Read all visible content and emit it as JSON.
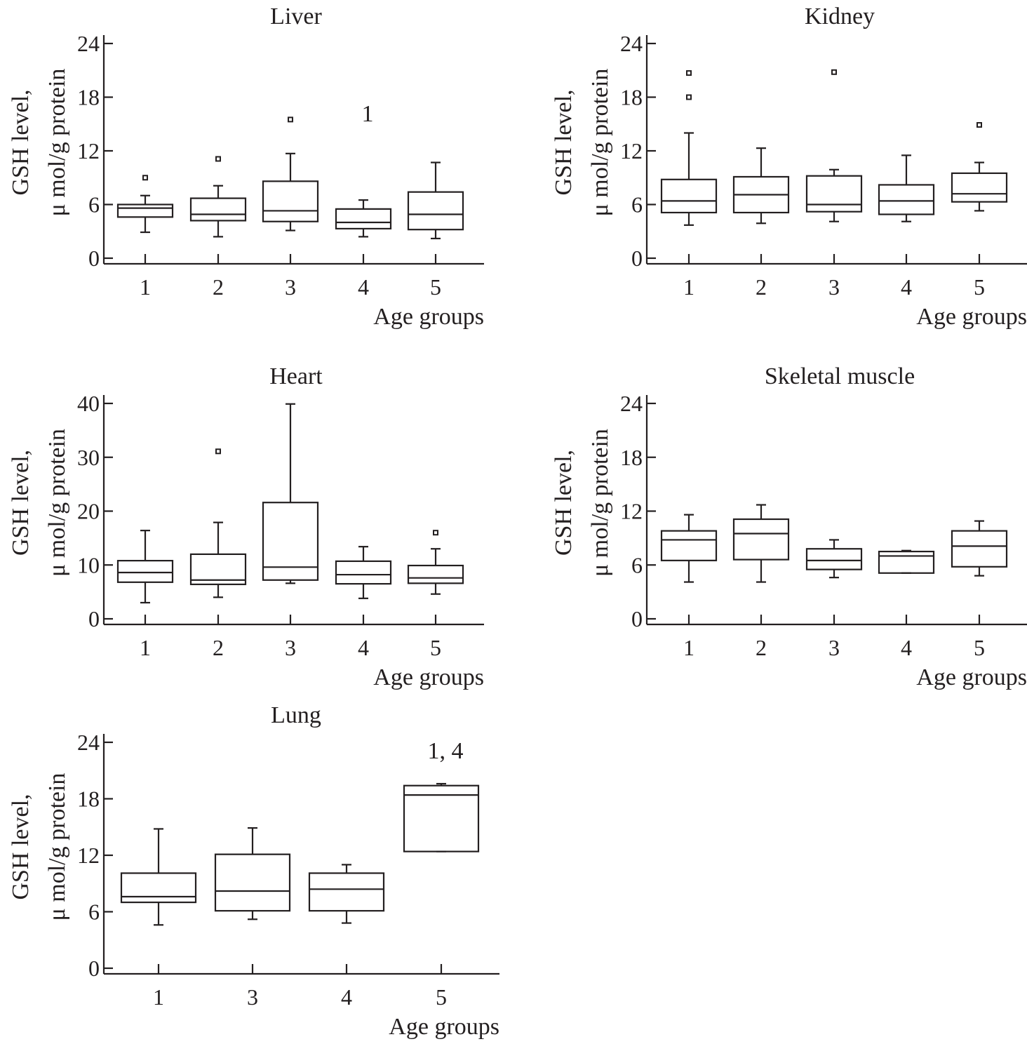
{
  "chart_data": [
    {
      "type": "box",
      "title": "Liver",
      "ylabel": [
        "GSH level,",
        "μ mol/g protein"
      ],
      "xlabel": "Age groups",
      "ylim": [
        0,
        24
      ],
      "yticks": [
        "0",
        "6",
        "12",
        "18",
        "24"
      ],
      "categories": [
        "1",
        "2",
        "3",
        "4",
        "5"
      ],
      "boxes": [
        {
          "min": 2.9,
          "q1": 4.6,
          "median": 5.6,
          "q3": 6.0,
          "max": 7.0,
          "outliers": [
            9.0
          ]
        },
        {
          "min": 2.4,
          "q1": 4.2,
          "median": 4.9,
          "q3": 6.7,
          "max": 8.1,
          "outliers": [
            11.1
          ]
        },
        {
          "min": 3.1,
          "q1": 4.1,
          "median": 5.3,
          "q3": 8.6,
          "max": 11.7,
          "outliers": [
            15.5
          ]
        },
        {
          "min": 2.4,
          "q1": 3.3,
          "median": 4.0,
          "q3": 5.5,
          "max": 6.5,
          "outliers": [],
          "annotation": "1"
        },
        {
          "min": 2.2,
          "q1": 3.2,
          "median": 4.9,
          "q3": 7.4,
          "max": 10.7,
          "outliers": []
        }
      ]
    },
    {
      "type": "box",
      "title": "Kidney",
      "ylabel": [
        "GSH level,",
        "μ mol/g protein"
      ],
      "xlabel": "Age groups",
      "ylim": [
        0,
        24
      ],
      "yticks": [
        "0",
        "6",
        "12",
        "18",
        "24"
      ],
      "categories": [
        "1",
        "2",
        "3",
        "4",
        "5"
      ],
      "boxes": [
        {
          "min": 3.7,
          "q1": 5.1,
          "median": 6.4,
          "q3": 8.8,
          "max": 14.0,
          "outliers": [
            18.0,
            20.7
          ]
        },
        {
          "min": 3.9,
          "q1": 5.1,
          "median": 7.1,
          "q3": 9.1,
          "max": 12.3,
          "outliers": []
        },
        {
          "min": 4.1,
          "q1": 5.2,
          "median": 6.0,
          "q3": 9.2,
          "max": 9.9,
          "outliers": [
            20.8
          ]
        },
        {
          "min": 4.1,
          "q1": 4.9,
          "median": 6.4,
          "q3": 8.2,
          "max": 11.5,
          "outliers": []
        },
        {
          "min": 5.3,
          "q1": 6.3,
          "median": 7.2,
          "q3": 9.5,
          "max": 10.7,
          "outliers": [
            14.9
          ]
        }
      ]
    },
    {
      "type": "box",
      "title": "Heart",
      "ylabel": [
        "GSH level,",
        "μ mol/g protein"
      ],
      "xlabel": "Age groups",
      "ylim": [
        0,
        40
      ],
      "yticks": [
        "0",
        "10",
        "20",
        "30",
        "40"
      ],
      "categories": [
        "1",
        "2",
        "3",
        "4",
        "5"
      ],
      "boxes": [
        {
          "min": 3.0,
          "q1": 6.8,
          "median": 8.6,
          "q3": 10.8,
          "max": 16.4,
          "outliers": []
        },
        {
          "min": 4.0,
          "q1": 6.4,
          "median": 7.2,
          "q3": 12.0,
          "max": 17.9,
          "outliers": [
            31.1
          ]
        },
        {
          "min": 6.6,
          "q1": 7.2,
          "median": 9.6,
          "q3": 21.6,
          "max": 39.9,
          "outliers": []
        },
        {
          "min": 3.8,
          "q1": 6.5,
          "median": 8.2,
          "q3": 10.7,
          "max": 13.4,
          "outliers": []
        },
        {
          "min": 4.6,
          "q1": 6.6,
          "median": 7.6,
          "q3": 9.9,
          "max": 13.0,
          "outliers": [
            16.0
          ]
        }
      ]
    },
    {
      "type": "box",
      "title": "Skeletal muscle",
      "ylabel": [
        "GSH level,",
        "μ mol/g protein"
      ],
      "xlabel": "Age groups",
      "ylim": [
        0,
        24
      ],
      "yticks": [
        "0",
        "6",
        "12",
        "18",
        "24"
      ],
      "categories": [
        "1",
        "2",
        "3",
        "4",
        "5"
      ],
      "boxes": [
        {
          "min": 4.1,
          "q1": 6.5,
          "median": 8.8,
          "q3": 9.8,
          "max": 11.6,
          "outliers": []
        },
        {
          "min": 4.1,
          "q1": 6.6,
          "median": 9.5,
          "q3": 11.1,
          "max": 12.7,
          "outliers": []
        },
        {
          "min": 4.6,
          "q1": 5.5,
          "median": 6.5,
          "q3": 7.8,
          "max": 8.8,
          "outliers": []
        },
        {
          "min": 5.1,
          "q1": 5.1,
          "median": 7.0,
          "q3": 7.5,
          "max": 7.6,
          "outliers": []
        },
        {
          "min": 4.8,
          "q1": 5.8,
          "median": 8.1,
          "q3": 9.8,
          "max": 10.9,
          "outliers": []
        }
      ]
    },
    {
      "type": "box",
      "title": "Lung",
      "ylabel": [
        "GSH level,",
        "μ mol/g protein"
      ],
      "xlabel": "Age groups",
      "ylim": [
        0,
        24
      ],
      "yticks": [
        "0",
        "6",
        "12",
        "18",
        "24"
      ],
      "categories": [
        "1",
        "3",
        "4",
        "5"
      ],
      "boxes": [
        {
          "min": 4.6,
          "q1": 7.0,
          "median": 7.6,
          "q3": 10.1,
          "max": 14.8,
          "outliers": []
        },
        {
          "min": 5.2,
          "q1": 6.1,
          "median": 8.2,
          "q3": 12.1,
          "max": 14.9,
          "outliers": []
        },
        {
          "min": 4.8,
          "q1": 6.1,
          "median": 8.4,
          "q3": 10.1,
          "max": 11.0,
          "outliers": []
        },
        {
          "min": 12.4,
          "q1": 12.4,
          "median": 18.4,
          "q3": 19.4,
          "max": 19.6,
          "outliers": [],
          "annotation": "1, 4"
        }
      ]
    }
  ]
}
